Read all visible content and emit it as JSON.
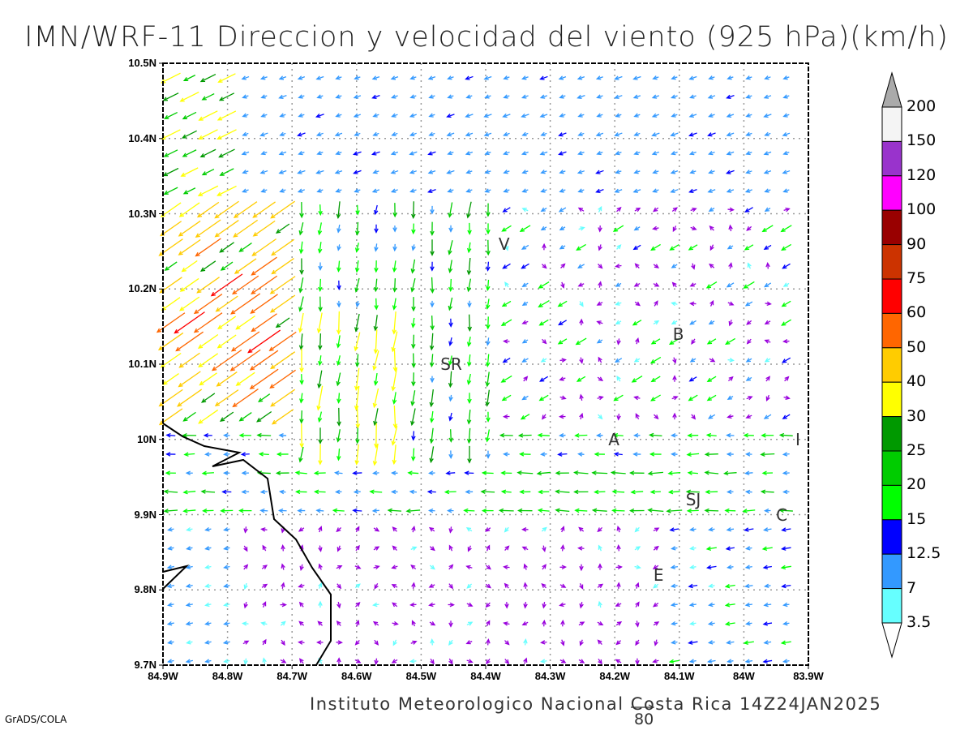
{
  "title": "IMN/WRF-11 Direccion y velocidad del viento (925 hPa)(km/h)",
  "footer": "Instituto Meteorologico Nacional Costa Rica 14Z24JAN2025",
  "credit": "GrADS/COLA",
  "reference_vector": {
    "label": "80",
    "speed_kmh": 80
  },
  "axes": {
    "y_ticks": [
      "10.5N",
      "10.4N",
      "10.3N",
      "10.2N",
      "10.1N",
      "10N",
      "9.9N",
      "9.8N",
      "9.7N"
    ],
    "x_ticks": [
      "84.9W",
      "84.8W",
      "84.7W",
      "84.6W",
      "84.5W",
      "84.4W",
      "84.3W",
      "84.2W",
      "84.1W",
      "84W",
      "83.9W"
    ]
  },
  "colorbar": {
    "labels": [
      "200",
      "150",
      "120",
      "100",
      "90",
      "75",
      "60",
      "50",
      "40",
      "30",
      "25",
      "20",
      "15",
      "12.5",
      "7",
      "3.5"
    ],
    "colors": [
      "#f4f4f4",
      "#9933cc",
      "#ff00ff",
      "#990000",
      "#cc3300",
      "#ff0000",
      "#ff6600",
      "#ffcc00",
      "#ffff00",
      "#009900",
      "#00cc00",
      "#00ff00",
      "#0000ff",
      "#3399ff",
      "#66ffff"
    ],
    "over_color": "#aaaaaa",
    "under_color": "#ffffff"
  },
  "places": [
    {
      "label": "V",
      "lon": -84.37,
      "lat": 10.26
    },
    {
      "label": "B",
      "lon": -84.1,
      "lat": 10.14
    },
    {
      "label": "SR",
      "lon": -84.46,
      "lat": 10.1
    },
    {
      "label": "A",
      "lon": -84.2,
      "lat": 10.0
    },
    {
      "label": "I",
      "lon": -83.91,
      "lat": 10.0
    },
    {
      "label": "SJ",
      "lon": -84.08,
      "lat": 9.92
    },
    {
      "label": "C",
      "lon": -83.94,
      "lat": 9.9
    },
    {
      "label": "E",
      "lon": -84.13,
      "lat": 9.82
    }
  ]
}
